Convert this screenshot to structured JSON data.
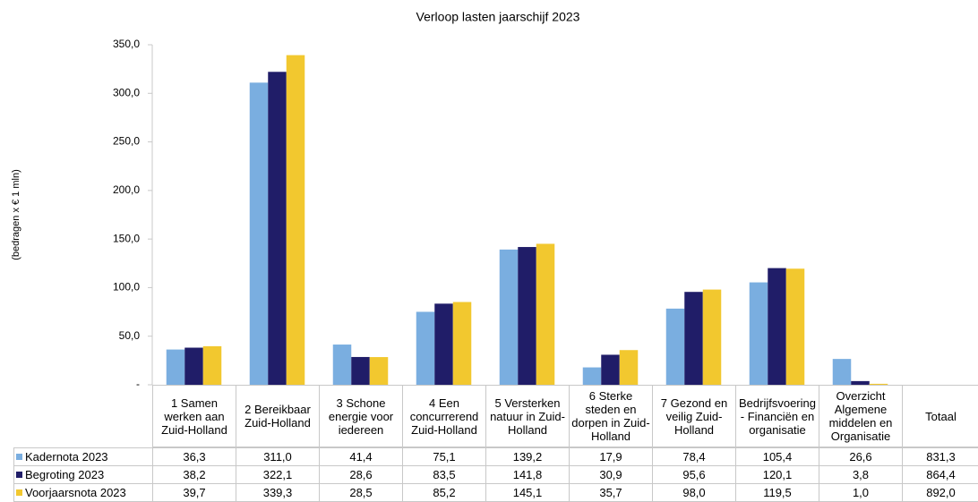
{
  "chart_data": {
    "type": "bar",
    "title": "Verloop lasten jaarschijf 2023",
    "y_label": "(bedragen x € 1 mln)",
    "categories": [
      "1 Samen werken aan Zuid-Holland",
      "2 Bereikbaar Zuid-Holland",
      "3 Schone energie voor iedereen",
      "4 Een concurrerend Zuid-Holland",
      "5 Versterken natuur in Zuid-Holland",
      "6 Sterke steden en dorpen in Zuid-Holland",
      "7 Gezond en veilig Zuid-Holland",
      "Bedrijfsvoering - Financiën en organisatie",
      "Overzicht Algemene middelen en Organisatie"
    ],
    "total_header": "Totaal",
    "series": [
      {
        "name": "Kadernota 2023",
        "color": "#7aaee0",
        "values": [
          36.3,
          311.0,
          41.4,
          75.1,
          139.2,
          17.9,
          78.4,
          105.4,
          26.6
        ],
        "value_labels": [
          "36,3",
          "311,0",
          "41,4",
          "75,1",
          "139,2",
          "17,9",
          "78,4",
          "105,4",
          "26,6"
        ],
        "total": 831.3,
        "total_value_label": "831,3"
      },
      {
        "name": "Begroting 2023",
        "color": "#201d68",
        "values": [
          38.2,
          322.1,
          28.6,
          83.5,
          141.8,
          30.9,
          95.6,
          120.1,
          3.8
        ],
        "value_labels": [
          "38,2",
          "322,1",
          "28,6",
          "83,5",
          "141,8",
          "30,9",
          "95,6",
          "120,1",
          "3,8"
        ],
        "total": 864.4,
        "total_value_label": "864,4"
      },
      {
        "name": "Voorjaarsnota 2023",
        "color": "#f2c82f",
        "values": [
          39.7,
          339.3,
          28.5,
          85.2,
          145.1,
          35.7,
          98.0,
          119.5,
          1.0
        ],
        "value_labels": [
          "39,7",
          "339,3",
          "28,5",
          "85,2",
          "145,1",
          "35,7",
          "98,0",
          "119,5",
          "1,0"
        ],
        "total": 892.0,
        "total_value_label": "892,0"
      }
    ],
    "ylim": [
      0,
      350
    ],
    "yticks": [
      {
        "value": 0,
        "label": "-"
      },
      {
        "value": 50,
        "label": "50,0"
      },
      {
        "value": 100,
        "label": "100,0"
      },
      {
        "value": 150,
        "label": "150,0"
      },
      {
        "value": 200,
        "label": "200,0"
      },
      {
        "value": 250,
        "label": "250,0"
      },
      {
        "value": 300,
        "label": "300,0"
      },
      {
        "value": 350,
        "label": "350,0"
      }
    ],
    "grid": false
  }
}
